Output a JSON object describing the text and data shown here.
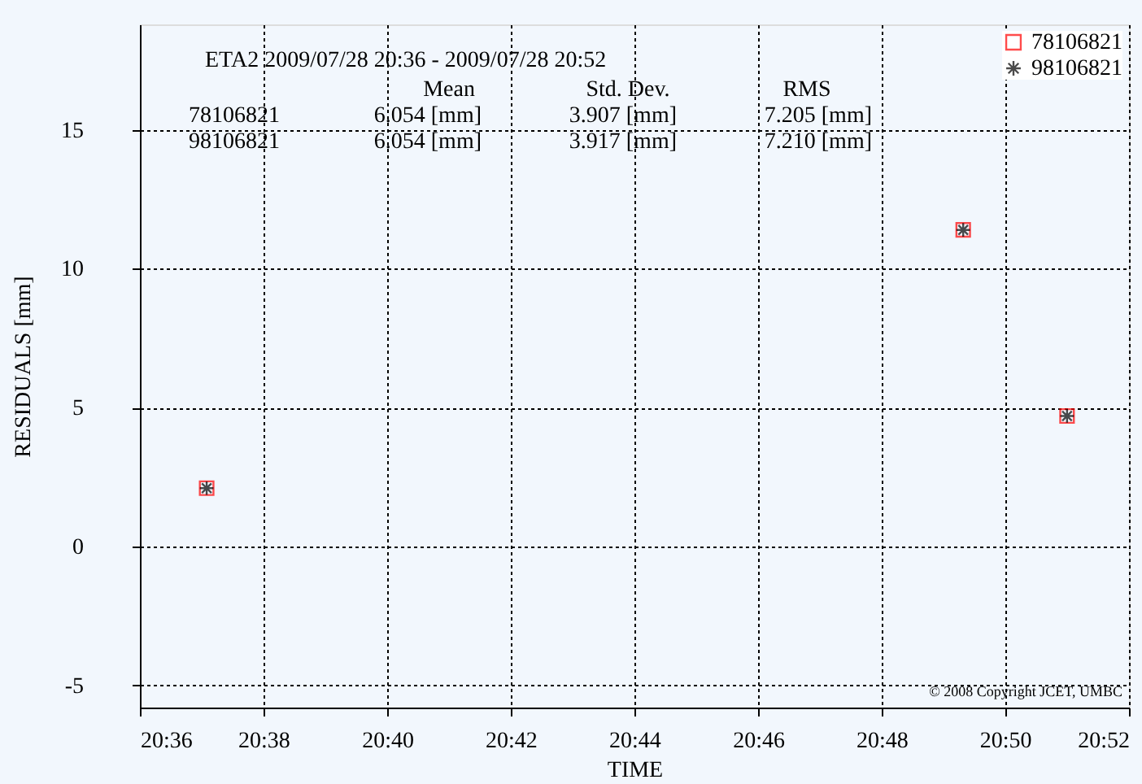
{
  "chart_data": {
    "type": "scatter",
    "xlabel": "TIME",
    "ylabel": "RESIDUALS [mm]",
    "x": [
      20.618,
      20.822,
      20.85
    ],
    "series": [
      {
        "name": "78106821",
        "color": "#ff0000",
        "marker": "square",
        "values": [
          2.1,
          11.4,
          4.7
        ]
      },
      {
        "name": "98106821",
        "color": "#000000",
        "marker": "cross",
        "values": [
          2.1,
          11.4,
          4.7
        ]
      }
    ],
    "xlim": [
      20.6,
      20.8667
    ],
    "xticks": [
      {
        "value": 20.6,
        "label": "20:36"
      },
      {
        "value": 20.6333,
        "label": "20:38"
      },
      {
        "value": 20.6667,
        "label": "20:40"
      },
      {
        "value": 20.7,
        "label": "20:42"
      },
      {
        "value": 20.7333,
        "label": "20:44"
      },
      {
        "value": 20.7667,
        "label": "20:46"
      },
      {
        "value": 20.8,
        "label": "20:48"
      },
      {
        "value": 20.8333,
        "label": "20:50"
      },
      {
        "value": 20.8667,
        "label": "20:52"
      }
    ],
    "ylim": [
      -5.8,
      18.8
    ],
    "yticks": [
      -5,
      0,
      5,
      10,
      15
    ],
    "grid": true,
    "legend": "top right",
    "annotations": [
      "ETA2  2009/07/28 20:36  -  2009/07/28 20:52",
      "Mean",
      "Std. Dev.",
      "RMS",
      "78106821",
      "6.054 [mm]",
      "3.907 [mm]",
      "7.205 [mm]",
      "98106821",
      "6.054 [mm]",
      "3.917 [mm]",
      "7.210 [mm]",
      "© 2008 Copyright JCET, UMBC"
    ]
  }
}
